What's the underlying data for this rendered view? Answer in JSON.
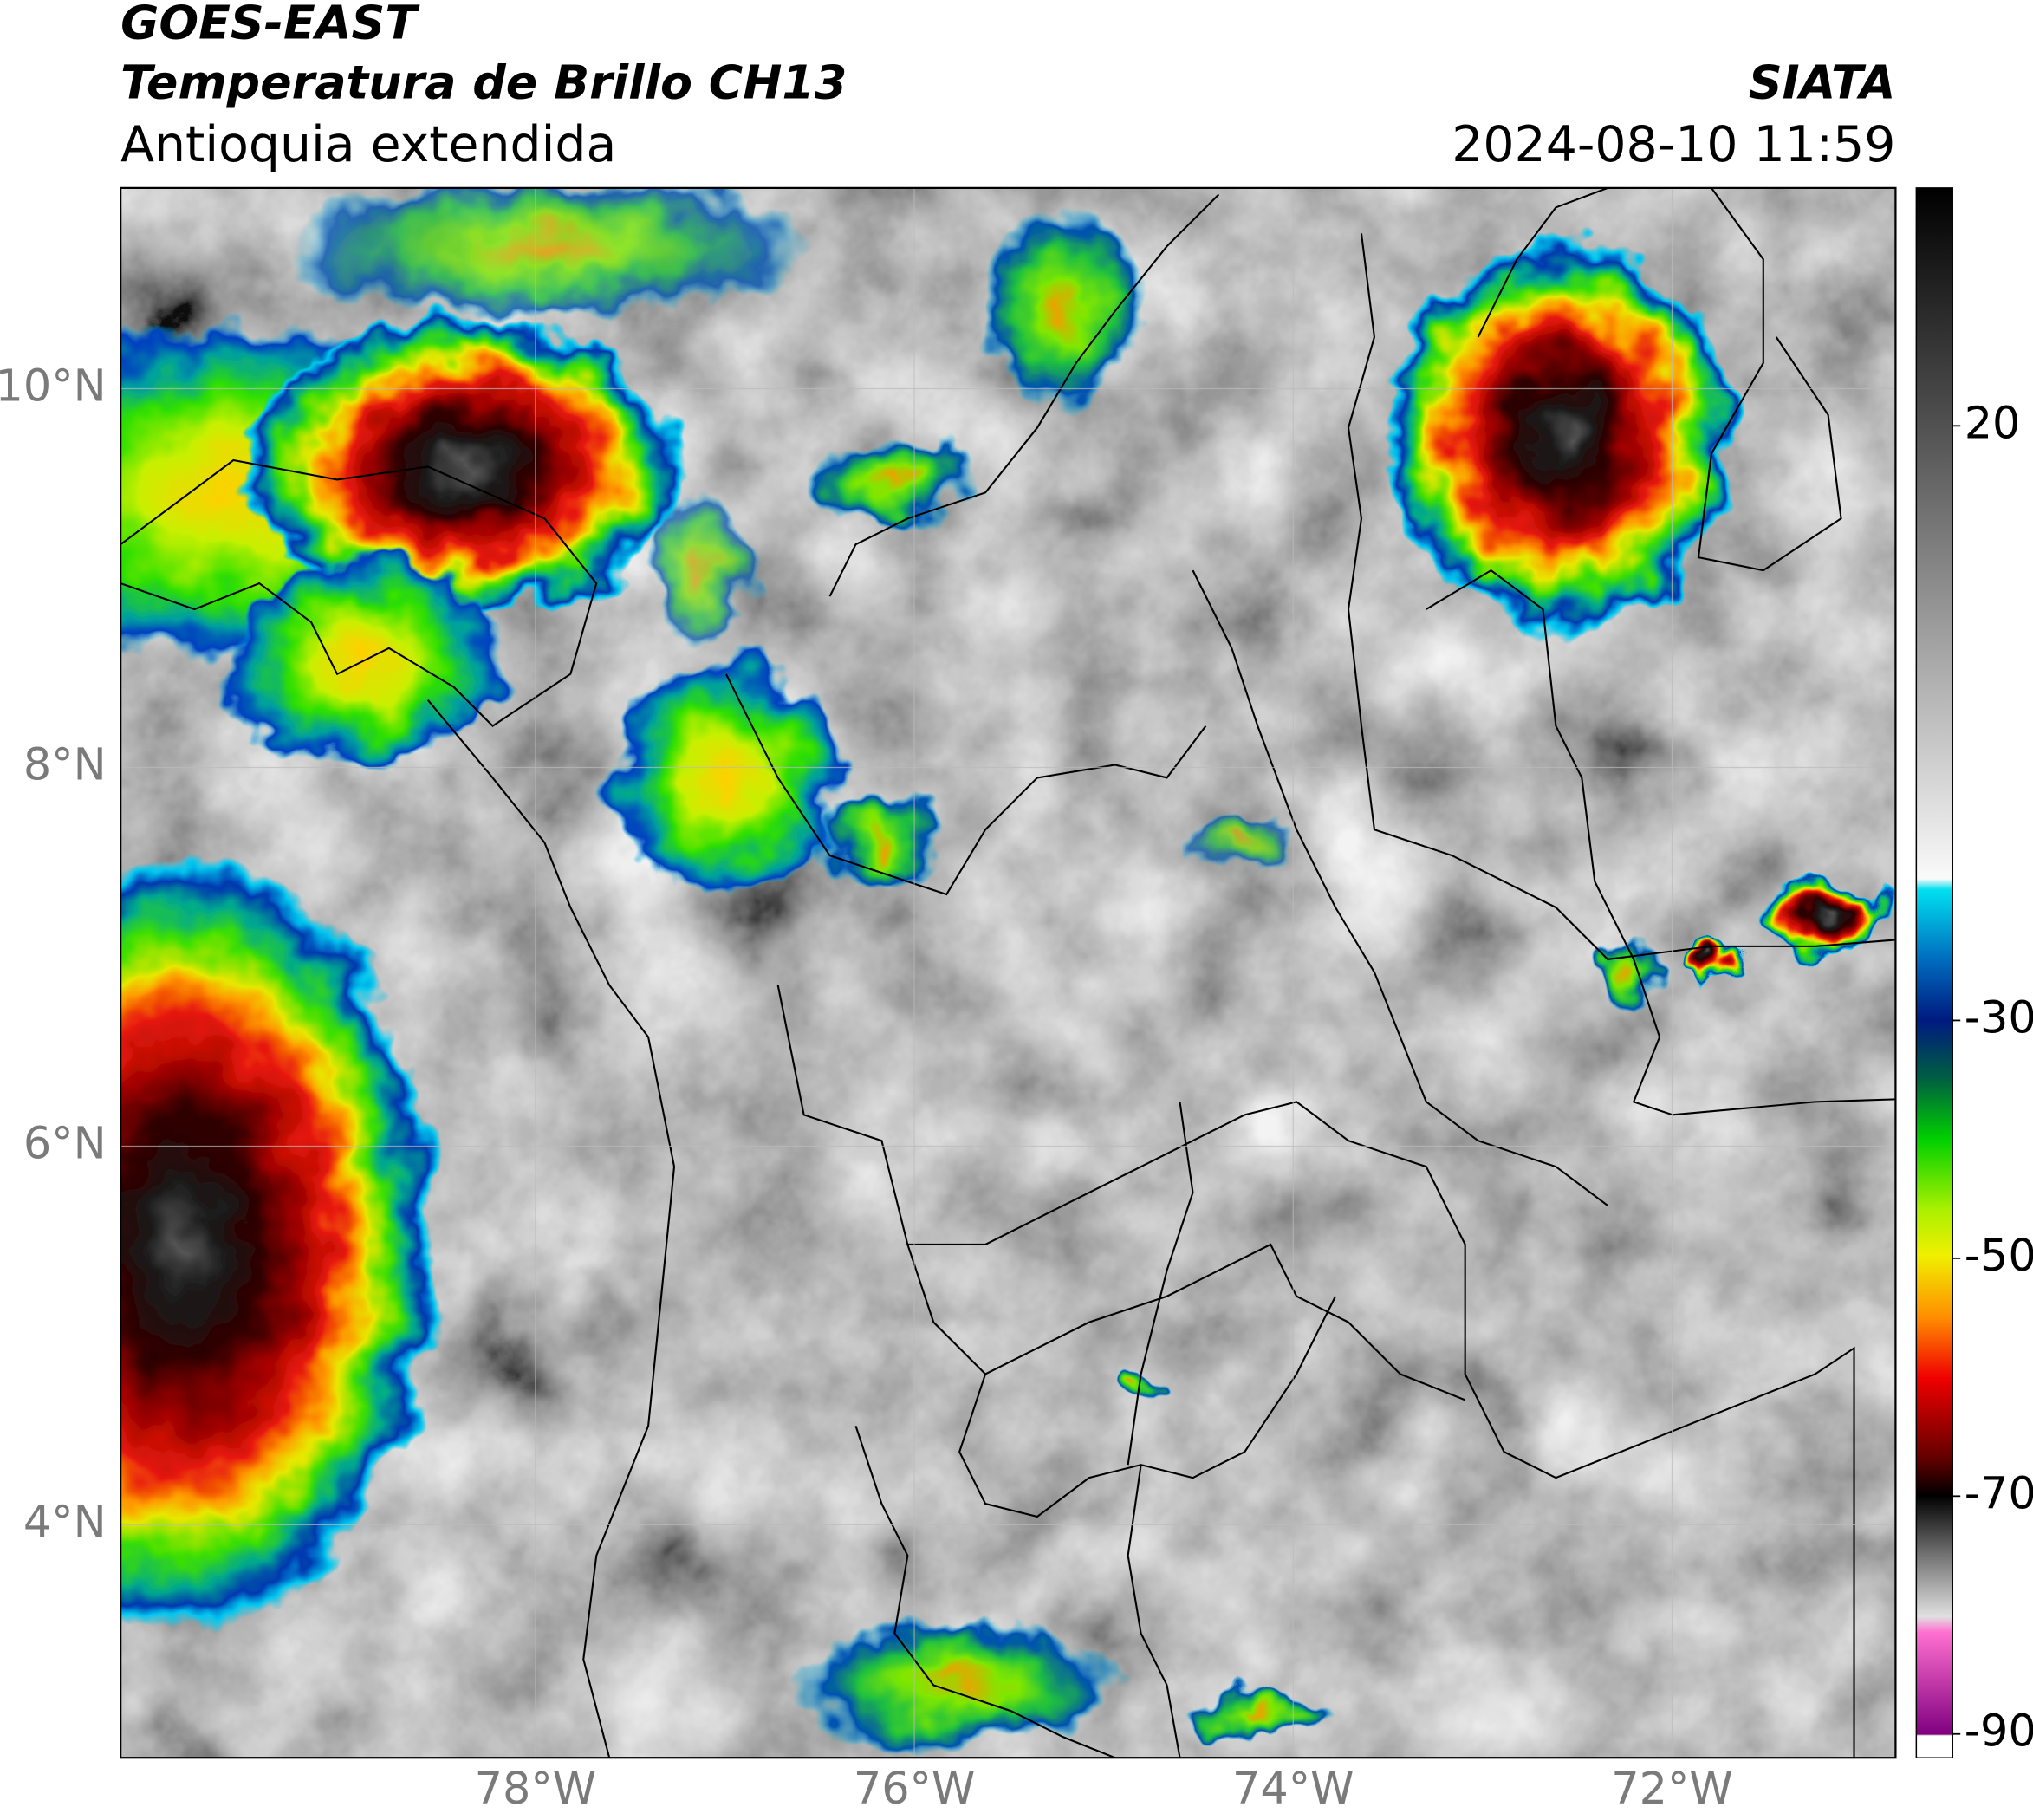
{
  "header": {
    "title_line1": "GOES-EAST",
    "title_line2": "Temperatura de Brillo CH13",
    "subtitle": "Antioquia extendida",
    "source": "SIATA",
    "datetime": "2024-08-10 11:59"
  },
  "map": {
    "xlim": [
      -80.19,
      -70.82
    ],
    "ylim": [
      2.77,
      11.06
    ],
    "xticks": [
      {
        "value": -78,
        "label": "78°W"
      },
      {
        "value": -76,
        "label": "76°W"
      },
      {
        "value": -74,
        "label": "74°W"
      },
      {
        "value": -72,
        "label": "72°W"
      }
    ],
    "yticks": [
      {
        "value": 4,
        "label": "4°N"
      },
      {
        "value": 6,
        "label": "6°N"
      },
      {
        "value": 8,
        "label": "8°N"
      },
      {
        "value": 10,
        "label": "10°N"
      }
    ],
    "grid": true
  },
  "colorbar": {
    "lim": [
      -92,
      40
    ],
    "ticks": [
      20,
      -30,
      -50,
      -70,
      -90
    ]
  }
}
